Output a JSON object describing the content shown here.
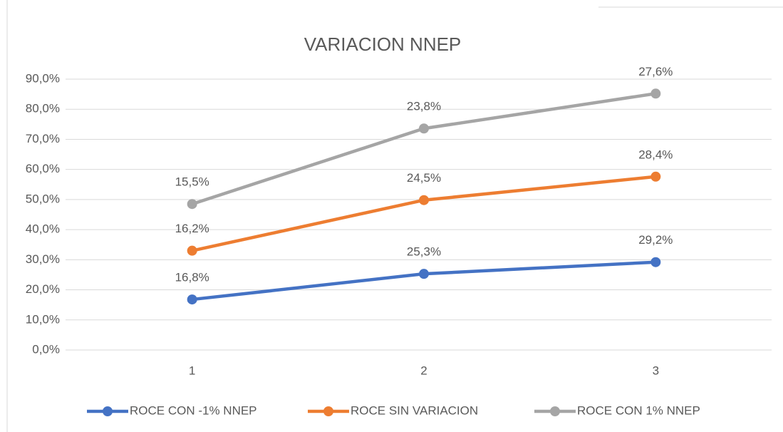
{
  "chart_data": {
    "type": "line",
    "stacked": true,
    "title": "VARIACION NNEP",
    "categories": [
      "1",
      "2",
      "3"
    ],
    "series": [
      {
        "name": "ROCE CON -1% NNEP",
        "color": "#4472c4",
        "values": [
          16.8,
          25.3,
          29.2
        ],
        "value_labels": [
          "16,8%",
          "25,3%",
          "29,2%"
        ]
      },
      {
        "name": "ROCE SIN VARIACION",
        "color": "#ed7d31",
        "values": [
          16.2,
          24.5,
          28.4
        ],
        "value_labels": [
          "16,2%",
          "24,5%",
          "28,4%"
        ]
      },
      {
        "name": "ROCE CON 1% NNEP",
        "color": "#a5a5a5",
        "values": [
          15.5,
          23.8,
          27.6
        ],
        "value_labels": [
          "15,5%",
          "23,8%",
          "27,6%"
        ]
      }
    ],
    "ylim": [
      0,
      90
    ],
    "yticks": [
      {
        "value": 0,
        "label": "0,0%"
      },
      {
        "value": 10,
        "label": "10,0%"
      },
      {
        "value": 20,
        "label": "20,0%"
      },
      {
        "value": 30,
        "label": "30,0%"
      },
      {
        "value": 40,
        "label": "40,0%"
      },
      {
        "value": 50,
        "label": "50,0%"
      },
      {
        "value": 60,
        "label": "60,0%"
      },
      {
        "value": 70,
        "label": "70,0%"
      },
      {
        "value": 80,
        "label": "80,0%"
      },
      {
        "value": 90,
        "label": "90,0%"
      }
    ],
    "grid": true,
    "legend": "bottom"
  }
}
